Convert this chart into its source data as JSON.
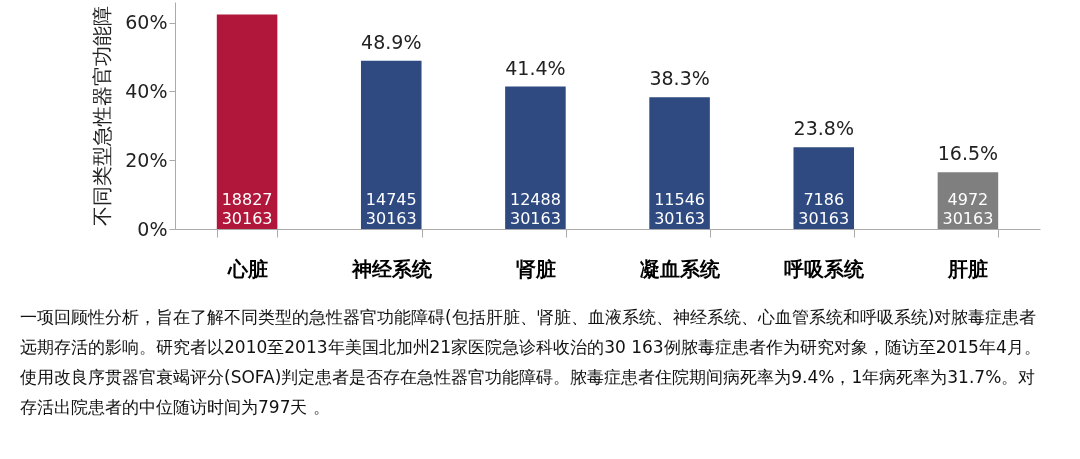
{
  "chart_data": {
    "type": "bar",
    "ylabel": "不同类型急性器官功能障",
    "categories": [
      "心脏",
      "神经系统",
      "肾脏",
      "凝血系统",
      "呼吸系统",
      "肝脏"
    ],
    "values": [
      62.4,
      48.9,
      41.4,
      38.3,
      23.8,
      16.5
    ],
    "colors": [
      "#b0173a",
      "#2e4a80",
      "#2e4a80",
      "#2e4a80",
      "#2e4a80",
      "#7f7f7f"
    ],
    "value_labels": [
      null,
      "48.9%",
      "41.4%",
      "38.3%",
      "23.8%",
      "16.5%"
    ],
    "ylim": [
      0,
      66
    ],
    "yticks": [
      {
        "value": 0,
        "label": "0%"
      },
      {
        "value": 20,
        "label": "20%"
      },
      {
        "value": 40,
        "label": "40%"
      },
      {
        "value": 60,
        "label": "60%"
      }
    ],
    "grid": false,
    "annotations": [
      "18827",
      "30163",
      "14745",
      "30163",
      "12488",
      "30163",
      "11546",
      "30163",
      "7186",
      "30163",
      "4972",
      "30163",
      "一项回顾性分析，旨在了解不同类型的急性器官功能障碍(包括肝脏、肾脏、血液系统、神经系统、心血管系统和呼吸系统)对脓毒症患者远期存活的影响。研究者以2010至2013年美国北加州21家医院急诊科收治的30  163例脓毒症患者作为研究对象，随访至2015年4月。使用改良序贯器官衰竭评分(SOFA)判定患者是否存在急性器官功能障碍。脓毒症患者住院期间病死率为9.4%，1年病死率为31.7%。对存活出院患者的中位随访时间为797天 。"
    ]
  }
}
